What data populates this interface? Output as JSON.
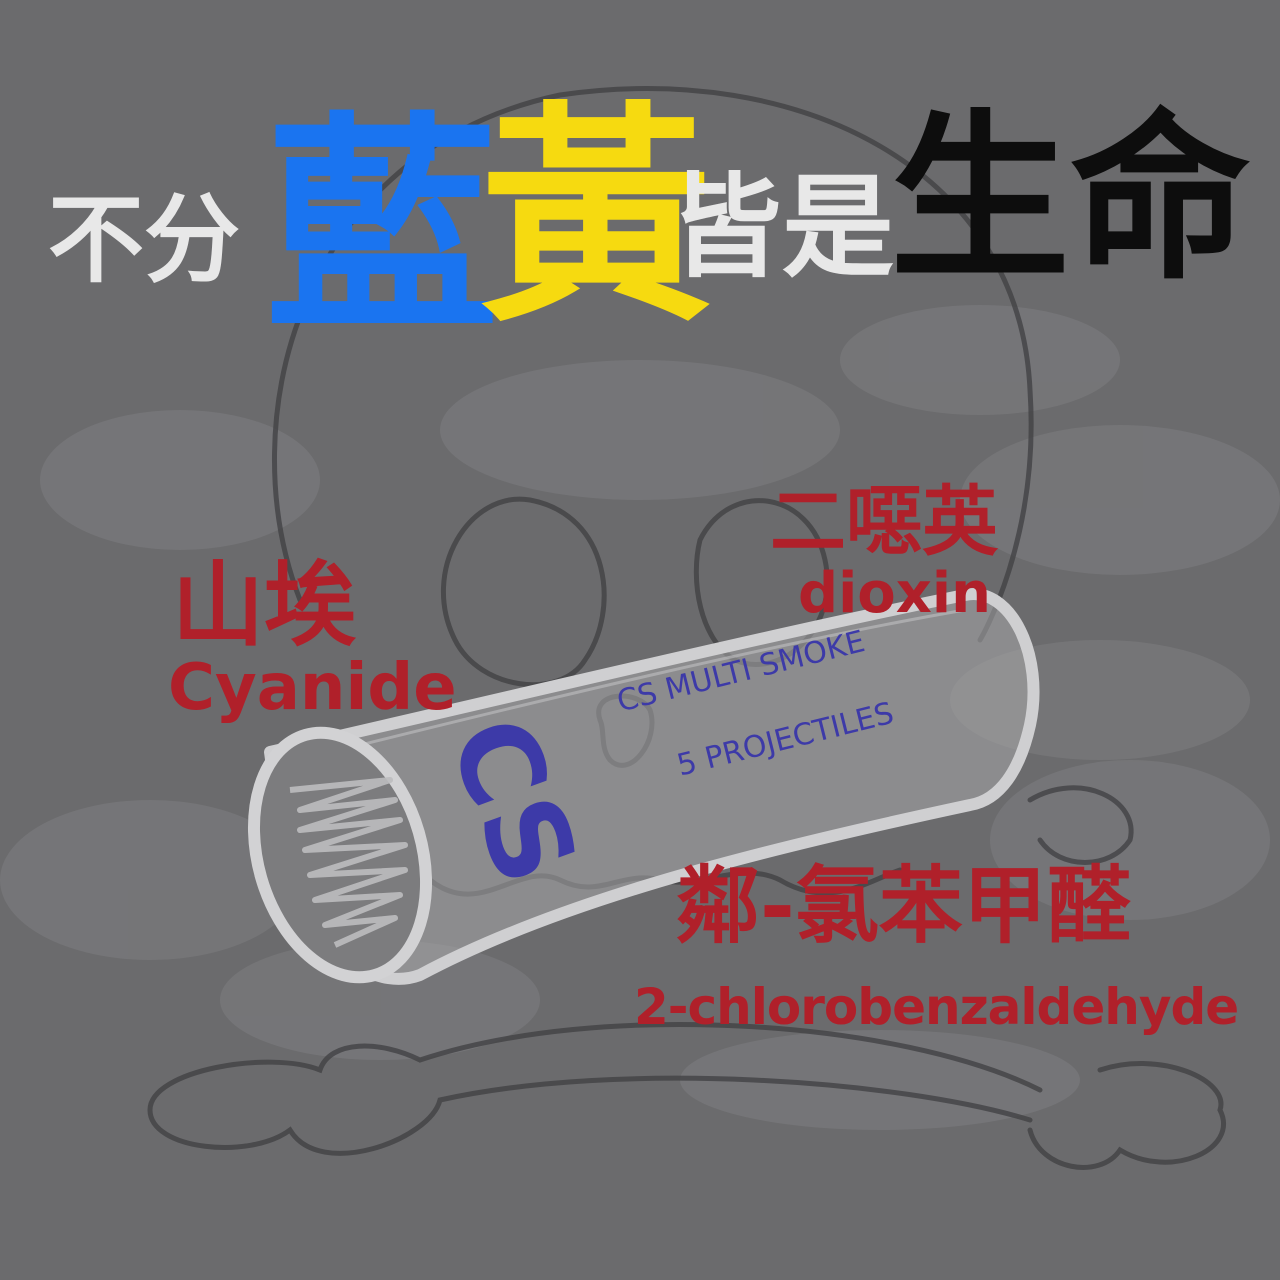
{
  "title": {
    "part1": "不分",
    "blue": "藍",
    "yellow": "黃",
    "part2": "皆是",
    "part3": "生命"
  },
  "labels": {
    "cyanide_zh": "山埃",
    "cyanide_en": "Cyanide",
    "dioxin_zh": "二噁英",
    "dioxin_en": "dioxin",
    "chloro_zh": "鄰-氯苯甲醛",
    "chloro_en": "2-chlorobenzaldehyde"
  },
  "canister": {
    "logo": "CS",
    "line1": "CS MULTI SMOKE",
    "line2": "5 PROJECTILES"
  },
  "colors": {
    "background": "#6b6b6d",
    "title_white": "#e8e8e8",
    "title_blue": "#1a74f0",
    "title_yellow": "#f6da10",
    "title_black": "#0d0d0d",
    "label_red": "#b0202a",
    "canister_text": "#3d3aa8",
    "outline": "#c4c4c4"
  }
}
